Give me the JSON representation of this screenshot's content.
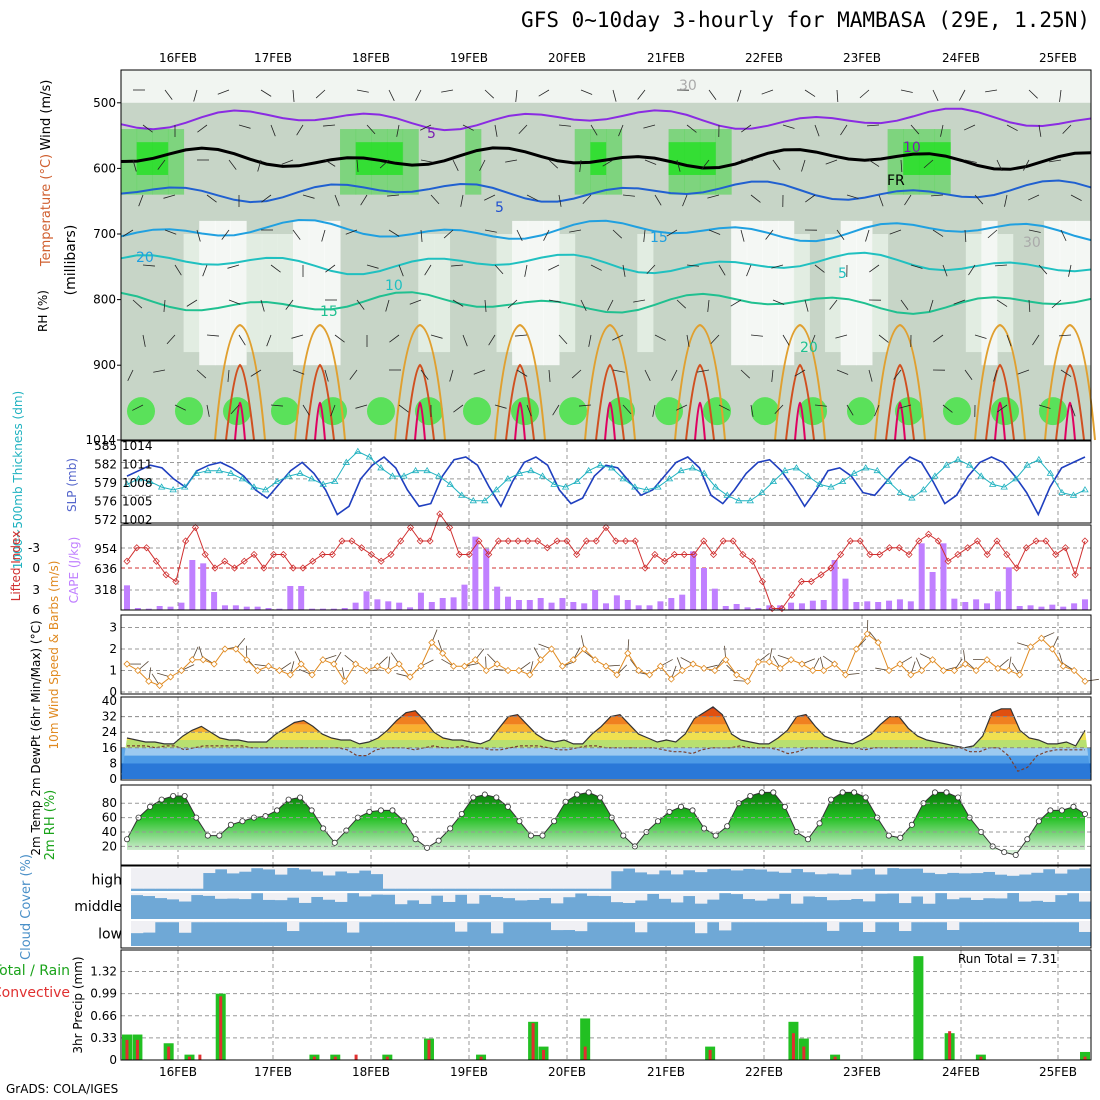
{
  "title": "GFS 0~10day 3-hourly for MAMBASA (29E, 1.25N)",
  "credit": "GrADS: COLA/IGES",
  "run_total_label": "Run Total = 7.31",
  "dates": [
    "16FEB",
    "17FEB",
    "18FEB",
    "19FEB",
    "20FEB",
    "21FEB",
    "22FEB",
    "23FEB",
    "24FEB",
    "25FEB"
  ],
  "colors": {
    "accent_blue": "#1f3fbf",
    "thickness_cyan": "#20b2c0",
    "lifted_red": "#d03030",
    "cape_purple": "#c080ff",
    "wind_orange": "#e08a20",
    "rh_green": "#1aa31a",
    "cloud_blue": "#6fa8d6",
    "precip_green": "#22c022",
    "precip_red": "#e03030"
  },
  "chart_data": [
    {
      "type": "heatmap",
      "panel": "vertical cross-section",
      "ylabel": "(millibars)",
      "side_labels": [
        "Wind (m/s)",
        "Temperature (°C)",
        "RH (%)"
      ],
      "y_ticks": [
        500,
        600,
        700,
        800,
        900,
        1014
      ],
      "ylim": [
        1014,
        450
      ],
      "contour_labels": [
        "5",
        "FR",
        "5",
        "10",
        "15",
        "20",
        "5",
        "10",
        "15",
        "20",
        "30",
        "30"
      ],
      "isotherms": [
        {
          "label": "-5",
          "level": 525
        },
        {
          "label": "FR",
          "level": 585
        },
        {
          "label": "5",
          "level": 635
        },
        {
          "label": "10",
          "level": 695
        },
        {
          "label": "15",
          "level": 745
        },
        {
          "label": "20",
          "level": 805
        }
      ]
    },
    {
      "type": "line",
      "panel": "thickness/slp",
      "ylabel_left": "1000~500mb Thickness (dm)",
      "ylabel_right": "SLP (mb)",
      "left_ticks": [
        "585",
        "582",
        "579",
        "576",
        "572"
      ],
      "right_ticks": [
        "1014",
        "1011",
        "1008",
        "1005",
        "1002"
      ],
      "series": [
        {
          "name": "SLP (mb)",
          "axis": "right",
          "values": [
            1008.5,
            1009.5,
            1010.5,
            1010,
            1008,
            1006.5,
            1009.5,
            1010.5,
            1011,
            1010,
            1008.5,
            1006,
            1004.5,
            1007,
            1009.5,
            1011,
            1009,
            1006,
            1001.5,
            1003,
            1008,
            1010.5,
            1012,
            1010,
            1006,
            1003,
            1003.5,
            1008.5,
            1011.5,
            1012,
            1010.5,
            1006.5,
            1003,
            1007.5,
            1011,
            1012,
            1010.5,
            1006,
            1003.5,
            1004.5,
            1008.5,
            1010.5,
            1010,
            1007.5,
            1005,
            1006,
            1008.5,
            1011,
            1012,
            1010,
            1005,
            1003.5,
            1006,
            1009,
            1011,
            1011.5,
            1009.5,
            1006.5,
            1003,
            1006,
            1009.5,
            1010,
            1008.5,
            1005.5,
            1005,
            1007.5,
            1010,
            1012,
            1011,
            1007.5,
            1003.5,
            1005,
            1008.5,
            1011,
            1012,
            1011,
            1008.5,
            1005.5,
            1001.5,
            1006.5,
            1010,
            1011,
            1012
          ]
        },
        {
          "name": "Thickness (dm)",
          "axis": "left",
          "values": [
            578.5,
            579.5,
            579,
            578,
            577.5,
            578,
            580.5,
            581,
            581,
            580.5,
            579.5,
            578,
            577.5,
            579,
            580,
            580.5,
            579.5,
            578.5,
            579,
            582.5,
            584.5,
            583.5,
            581.5,
            580,
            580,
            581,
            581,
            580,
            578.5,
            576.5,
            575.5,
            575.5,
            577.5,
            579.5,
            580.5,
            581,
            580,
            578.5,
            578,
            579,
            581,
            582,
            581.5,
            579.5,
            578,
            577.5,
            578,
            579.5,
            581,
            581.5,
            580.5,
            578,
            576.5,
            575.5,
            575.5,
            577,
            579,
            581,
            581.5,
            580,
            578.5,
            578,
            579,
            580.5,
            581.5,
            581,
            579,
            577,
            576,
            577.5,
            580,
            582,
            583,
            582,
            580,
            578.5,
            578,
            579.5,
            582,
            583,
            580.5,
            577,
            576.5,
            577.5
          ]
        }
      ]
    },
    {
      "type": "bar",
      "panel": "lifted index / cape",
      "ylabel_left": "Lifted Index",
      "ylabel_right": "CAPE (J/kg)",
      "left_ticks": [
        "-3",
        "0",
        "3",
        "6"
      ],
      "right_ticks": [
        "954",
        "636",
        "318"
      ],
      "series": [
        {
          "name": "CAPE (J/kg)",
          "type": "bar",
          "values": [
            370,
            30,
            20,
            60,
            50,
            110,
            750,
            700,
            270,
            70,
            70,
            50,
            50,
            30,
            20,
            360,
            360,
            20,
            20,
            20,
            30,
            110,
            280,
            160,
            130,
            110,
            40,
            260,
            120,
            180,
            190,
            380,
            1100,
            920,
            350,
            200,
            150,
            150,
            180,
            110,
            180,
            120,
            100,
            300,
            100,
            220,
            150,
            70,
            70,
            130,
            180,
            230,
            880,
            630,
            320,
            60,
            90,
            40,
            30,
            70,
            70,
            110,
            100,
            140,
            150,
            750,
            470,
            120,
            130,
            120,
            140,
            160,
            130,
            1000,
            570,
            1000,
            170,
            120,
            160,
            100,
            280,
            640,
            60,
            70,
            50,
            80,
            50,
            100,
            160
          ]
        },
        {
          "name": "Lifted Index",
          "type": "line",
          "values": [
            -0.5,
            -1.5,
            -1.5,
            -0.5,
            0.5,
            1,
            -2,
            -3,
            -1,
            0,
            -0.5,
            0,
            -0.5,
            -1,
            0,
            -1,
            -1,
            0,
            0,
            -0.5,
            -1,
            -1,
            -2,
            -2,
            -1.5,
            -1,
            -0.5,
            -1,
            -2,
            -3,
            -2,
            -2,
            -4,
            -3,
            -1,
            -1,
            -2,
            -1,
            -2,
            -2,
            -2,
            -2,
            -2,
            -1.5,
            -2,
            -2,
            -1,
            -2,
            -2,
            -3,
            -2,
            -2,
            -2,
            0,
            -1,
            -0.5,
            -1,
            -1,
            -1,
            -2,
            -1,
            -2,
            -2,
            -1,
            -0.5,
            1,
            3,
            3,
            2,
            1,
            1,
            0.5,
            0,
            -1,
            -2,
            -2,
            -1,
            -1,
            -1.5,
            -1.5,
            -1,
            -2,
            -2.5,
            -2,
            -0.5,
            -1,
            -1.5,
            -2,
            -1,
            -2,
            -1,
            0,
            -1.5,
            -2,
            -2,
            -1,
            -1.5,
            0.5,
            -2
          ]
        }
      ]
    },
    {
      "type": "line",
      "panel": "10m wind",
      "ylabel": "10m Wind Speed & Barbs (m/s)",
      "y_ticks": [
        "3",
        "2",
        "1",
        "0"
      ],
      "ylim": [
        0,
        3.5
      ],
      "series": [
        {
          "name": "Wind speed (m/s)",
          "values": [
            1.3,
            1.0,
            0.5,
            0.3,
            0.7,
            1.0,
            1.5,
            1.5,
            1.3,
            2.0,
            2.0,
            1.5,
            1.0,
            1.2,
            1.0,
            0.8,
            1.3,
            0.8,
            1.5,
            1.3,
            0.5,
            1.3,
            1.0,
            1.2,
            1.0,
            1.3,
            0.7,
            1.2,
            2.3,
            1.8,
            1.2,
            1.2,
            1.5,
            1.0,
            1.3,
            1.0,
            1.0,
            0.8,
            1.5,
            2.0,
            1.2,
            1.5,
            2.0,
            1.5,
            1.2,
            0.8,
            1.8,
            1.0,
            0.8,
            1.2,
            0.6,
            1.0,
            1.3,
            1.1,
            1.0,
            1.5,
            0.8,
            0.5,
            1.4,
            1.4,
            1.1,
            1.5,
            1.3,
            1.0,
            1.0,
            1.3,
            0.8,
            2.0,
            2.7,
            2.3,
            1.0,
            1.3,
            0.8,
            1.0,
            1.5,
            1.0,
            1.0,
            1.3,
            1.0,
            1.5,
            1.1,
            1.0,
            0.8,
            2.1,
            2.5,
            2.0,
            1.2,
            1.0,
            0.5
          ]
        }
      ]
    },
    {
      "type": "area",
      "panel": "2m temp",
      "ylabel": "2m Temp 2m DewPt (6hr Min/Max) (°C)",
      "y_ticks": [
        "40",
        "32",
        "24",
        "16",
        "8",
        "0"
      ],
      "ylim": [
        0,
        40
      ],
      "series": [
        {
          "name": "2m Temp (°C)",
          "values": [
            21,
            20,
            19,
            19,
            18,
            18,
            22,
            25,
            27,
            24,
            21,
            20,
            20,
            19,
            19,
            19,
            23,
            26,
            29,
            30,
            27,
            23,
            21,
            20,
            20,
            18,
            19,
            21,
            25,
            30,
            34,
            35,
            30,
            24,
            21,
            20,
            20,
            19,
            18,
            20,
            26,
            32,
            33,
            28,
            23,
            20,
            19,
            20,
            18,
            18,
            23,
            27,
            32,
            33,
            28,
            23,
            21,
            19,
            20,
            19,
            23,
            31,
            34,
            37,
            33,
            23,
            20,
            19,
            18,
            18,
            21,
            25,
            32,
            33,
            27,
            22,
            20,
            19,
            18,
            20,
            23,
            28,
            32,
            32,
            26,
            22,
            20,
            19,
            18,
            17,
            16,
            17,
            22,
            34,
            36,
            36,
            25,
            21,
            20,
            18,
            18,
            19,
            17,
            25
          ]
        },
        {
          "name": "2m DewPt (°C)",
          "values": [
            17,
            17,
            17,
            16,
            17,
            17,
            15,
            16,
            17,
            17,
            17,
            17,
            17,
            16,
            16,
            16,
            16,
            16,
            16,
            16,
            16,
            16,
            16,
            15,
            12,
            12,
            15,
            16,
            16,
            16,
            15,
            16,
            17,
            16,
            16,
            17,
            16,
            16,
            15,
            15,
            16,
            17,
            17,
            17,
            16,
            15,
            15,
            16,
            17,
            17,
            16,
            16,
            16,
            16,
            16,
            16,
            15,
            14,
            14,
            13,
            15,
            16,
            16,
            16,
            17,
            16,
            16,
            16,
            15,
            13,
            14,
            16,
            16,
            16,
            16,
            16,
            16,
            15,
            16,
            16,
            16,
            16,
            16,
            16,
            16,
            16,
            16,
            16,
            14,
            14,
            16,
            16,
            12,
            4,
            6,
            12,
            14,
            15,
            15,
            15,
            15
          ]
        }
      ]
    },
    {
      "type": "area",
      "panel": "2m rh",
      "ylabel": "2m RH (%)",
      "y_ticks": [
        "80",
        "60",
        "40",
        "20"
      ],
      "ylim": [
        10,
        100
      ],
      "series": [
        {
          "name": "2m RH (%)",
          "values": [
            30,
            60,
            75,
            85,
            90,
            90,
            60,
            35,
            35,
            50,
            55,
            60,
            62,
            70,
            85,
            88,
            70,
            45,
            25,
            42,
            60,
            68,
            70,
            70,
            55,
            30,
            18,
            28,
            45,
            65,
            88,
            92,
            88,
            75,
            55,
            35,
            35,
            55,
            82,
            92,
            95,
            88,
            60,
            35,
            20,
            40,
            55,
            68,
            75,
            70,
            45,
            35,
            48,
            80,
            90,
            95,
            95,
            75,
            40,
            30,
            52,
            85,
            95,
            95,
            88,
            60,
            35,
            32,
            50,
            80,
            95,
            95,
            88,
            60,
            40,
            20,
            12,
            8,
            30,
            55,
            70,
            70,
            75,
            65
          ]
        }
      ]
    },
    {
      "type": "heatmap",
      "panel": "cloud cover",
      "ylabel": "Cloud Cover (%)",
      "rows": [
        "high",
        "middle",
        "low"
      ]
    },
    {
      "type": "bar",
      "panel": "precip",
      "ylabel": "3hr Precip (mm)",
      "side_labels": [
        "Total / Rain",
        "Convective"
      ],
      "y_ticks": [
        "1.32",
        "0.99",
        "0.66",
        "0.33",
        "0"
      ],
      "ylim": [
        0,
        1.6
      ],
      "series": [
        {
          "name": "Total / Rain",
          "values": [
            0.38,
            0.38,
            0,
            0,
            0.25,
            0,
            0.08,
            0,
            0,
            0.99,
            0,
            0,
            0,
            0,
            0,
            0,
            0,
            0,
            0.08,
            0,
            0.08,
            0,
            0,
            0,
            0,
            0.08,
            0,
            0,
            0,
            0.32,
            0,
            0,
            0,
            0,
            0.08,
            0,
            0,
            0,
            0,
            0.57,
            0.2,
            0,
            0,
            0,
            0.62,
            0,
            0,
            0,
            0,
            0,
            0,
            0,
            0,
            0,
            0,
            0,
            0.2,
            0,
            0,
            0,
            0,
            0,
            0,
            0,
            0.57,
            0.32,
            0,
            0,
            0.08,
            0,
            0,
            0,
            0,
            0,
            0,
            0,
            1.55,
            0,
            0,
            0.4,
            0,
            0,
            0.08,
            0,
            0,
            0,
            0,
            0,
            0,
            0,
            0,
            0,
            0.12
          ]
        },
        {
          "name": "Convective",
          "values": [
            0.3,
            0.3,
            0,
            0,
            0.2,
            0,
            0.05,
            0.08,
            0,
            0.95,
            0,
            0,
            0,
            0,
            0,
            0,
            0,
            0,
            0.05,
            0,
            0.05,
            0,
            0.08,
            0,
            0,
            0.05,
            0,
            0,
            0,
            0.3,
            0,
            0,
            0,
            0,
            0.05,
            0,
            0,
            0,
            0,
            0.55,
            0.15,
            0,
            0,
            0,
            0.2,
            0,
            0,
            0,
            0,
            0,
            0,
            0,
            0,
            0,
            0,
            0,
            0.15,
            0,
            0,
            0,
            0,
            0,
            0,
            0,
            0.4,
            0.2,
            0,
            0,
            0.05,
            0,
            0,
            0,
            0,
            0,
            0,
            0,
            0,
            0,
            0,
            0.43,
            0,
            0,
            0.05,
            0,
            0,
            0,
            0,
            0,
            0,
            0,
            0,
            0,
            0.05
          ]
        }
      ]
    }
  ]
}
